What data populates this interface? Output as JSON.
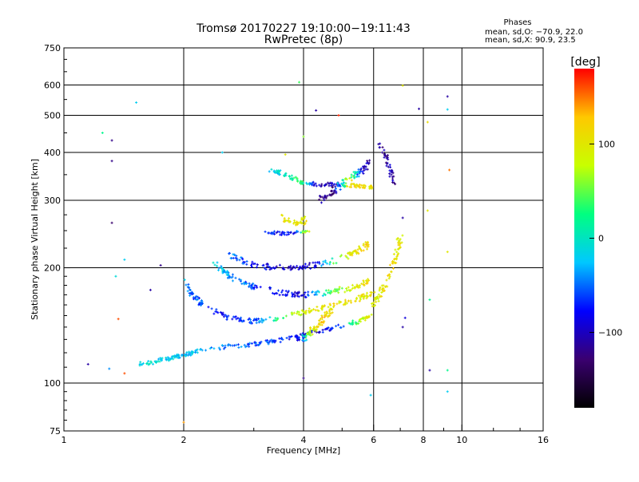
{
  "chart_data": {
    "type": "scatter",
    "title": "Tromsø 20170227 19:10:00−19:11:43",
    "subtitle": "RwPretec (8p)",
    "xlabel": "Frequency [MHz]",
    "ylabel": "Stationary phase Virtual Height [km]",
    "x_scale": "log",
    "y_scale": "log",
    "xlim": [
      1,
      16
    ],
    "ylim": [
      75,
      750
    ],
    "grid": true,
    "x_ticks": [
      1,
      2,
      4,
      6,
      8,
      10,
      16
    ],
    "x_tick_labels": [
      "1",
      "2",
      "4",
      "6",
      "8",
      "10",
      "16"
    ],
    "y_ticks": [
      75,
      100,
      200,
      300,
      400,
      500,
      600,
      750
    ],
    "y_tick_labels": [
      "75",
      "100",
      "200",
      "300",
      "400",
      "500",
      "600",
      "750"
    ],
    "phase_stats": {
      "heading": "Phases",
      "o_line": "mean, sd,O: −70.9, 22.0",
      "x_line": "mean, sd,X:  90.9, 23.5"
    },
    "colorbar": {
      "label": "[deg]",
      "range": [
        -180,
        180
      ],
      "ticks": [
        100,
        0,
        -100
      ],
      "tick_labels": [
        "100",
        "0",
        "−100"
      ],
      "colors": [
        "#000000",
        "#3a0070",
        "#0000ff",
        "#00c8ff",
        "#00ff80",
        "#c8ff00",
        "#ffc800",
        "#ff0000"
      ]
    },
    "trace_anchors": [
      {
        "x": [
          1.55,
          1.7,
          1.85,
          2.0,
          2.2,
          2.5,
          2.9,
          3.3,
          3.8,
          4.3,
          4.9,
          5.5,
          5.9
        ],
        "y": [
          112,
          114,
          116,
          118,
          122,
          124,
          126,
          128,
          132,
          136,
          140,
          145,
          150
        ],
        "phase": [
          -10,
          -15,
          -20,
          -25,
          -30,
          -40,
          -50,
          -60,
          -80,
          -90,
          -70,
          60,
          110
        ],
        "count": 240,
        "spread": 0.012
      },
      {
        "x": [
          2.0,
          2.1,
          2.3,
          2.6,
          3.0,
          3.5,
          4.1,
          4.8,
          5.5,
          6.0
        ],
        "y": [
          185,
          170,
          156,
          148,
          145,
          148,
          154,
          160,
          166,
          172
        ],
        "phase": [
          -30,
          -50,
          -70,
          -70,
          -60,
          40,
          100,
          110,
          100,
          100
        ],
        "count": 200,
        "spread": 0.014
      },
      {
        "x": [
          2.4,
          2.6,
          3.0,
          3.5,
          4.0,
          4.6,
          5.3,
          5.9
        ],
        "y": [
          205,
          190,
          178,
          172,
          170,
          172,
          178,
          185
        ],
        "phase": [
          -20,
          -40,
          -60,
          -80,
          -90,
          30,
          100,
          110
        ],
        "count": 170,
        "spread": 0.016
      },
      {
        "x": [
          2.6,
          2.9,
          3.3,
          3.8,
          4.3,
          4.9,
          5.4,
          5.9
        ],
        "y": [
          215,
          205,
          200,
          200,
          203,
          210,
          220,
          232
        ],
        "phase": [
          -40,
          -70,
          -90,
          -100,
          -90,
          60,
          110,
          120
        ],
        "count": 150,
        "spread": 0.018
      },
      {
        "x": [
          3.3,
          3.6,
          3.9,
          4.3,
          4.8,
          5.2,
          5.6,
          6.0
        ],
        "y": [
          360,
          350,
          335,
          330,
          330,
          328,
          326,
          324
        ],
        "phase": [
          -20,
          -10,
          50,
          -100,
          -110,
          120,
          110,
          100
        ],
        "count": 140,
        "spread": 0.012
      },
      {
        "x": [
          3.2,
          3.5,
          3.8,
          4.1
        ],
        "y": [
          248,
          246,
          246,
          250
        ],
        "phase": [
          -60,
          -80,
          -90,
          100
        ],
        "count": 45,
        "spread": 0.01
      },
      {
        "x": [
          4.4,
          4.8,
          5.2,
          5.6,
          5.9
        ],
        "y": [
          300,
          320,
          340,
          360,
          380
        ],
        "phase": [
          -110,
          -120,
          100,
          -100,
          -110
        ],
        "count": 90,
        "spread": 0.02
      },
      {
        "x": [
          6.0,
          6.2,
          6.5,
          6.8,
          7.0
        ],
        "y": [
          160,
          170,
          185,
          210,
          240
        ],
        "phase": [
          90,
          100,
          110,
          110,
          100
        ],
        "count": 80,
        "spread": 0.02
      },
      {
        "x": [
          6.2,
          6.4,
          6.6,
          6.8
        ],
        "y": [
          420,
          390,
          360,
          330
        ],
        "phase": [
          -110,
          -120,
          -100,
          -110
        ],
        "count": 40,
        "spread": 0.02
      },
      {
        "x": [
          3.9,
          4.1,
          4.3,
          4.5,
          4.7
        ],
        "y": [
          128,
          134,
          140,
          148,
          156
        ],
        "phase": [
          -100,
          60,
          110,
          120,
          100
        ],
        "count": 80,
        "spread": 0.015
      },
      {
        "x": [
          3.5,
          3.7,
          3.9,
          4.1
        ],
        "y": [
          270,
          265,
          262,
          268
        ],
        "phase": [
          100,
          110,
          105,
          100
        ],
        "count": 40,
        "spread": 0.02
      }
    ],
    "isolated_points": [
      {
        "x": 1.52,
        "y": 540,
        "phase": -20
      },
      {
        "x": 1.32,
        "y": 430,
        "phase": -120
      },
      {
        "x": 1.32,
        "y": 380,
        "phase": -120
      },
      {
        "x": 1.32,
        "y": 262,
        "phase": -130
      },
      {
        "x": 1.25,
        "y": 450,
        "phase": 20
      },
      {
        "x": 1.42,
        "y": 210,
        "phase": -20
      },
      {
        "x": 1.35,
        "y": 190,
        "phase": -10
      },
      {
        "x": 1.15,
        "y": 112,
        "phase": -110
      },
      {
        "x": 1.3,
        "y": 109,
        "phase": -40
      },
      {
        "x": 1.42,
        "y": 106,
        "phase": 160
      },
      {
        "x": 1.37,
        "y": 147,
        "phase": 160
      },
      {
        "x": 1.75,
        "y": 203,
        "phase": -120
      },
      {
        "x": 1.65,
        "y": 175,
        "phase": -110
      },
      {
        "x": 2.0,
        "y": 79,
        "phase": 140
      },
      {
        "x": 3.9,
        "y": 610,
        "phase": 40
      },
      {
        "x": 4.3,
        "y": 515,
        "phase": -110
      },
      {
        "x": 4.9,
        "y": 500,
        "phase": 170
      },
      {
        "x": 4.0,
        "y": 103,
        "phase": -120
      },
      {
        "x": 5.9,
        "y": 93,
        "phase": -20
      },
      {
        "x": 7.1,
        "y": 598,
        "phase": 100
      },
      {
        "x": 7.8,
        "y": 520,
        "phase": -110
      },
      {
        "x": 8.2,
        "y": 480,
        "phase": 110
      },
      {
        "x": 9.2,
        "y": 560,
        "phase": -110
      },
      {
        "x": 9.2,
        "y": 518,
        "phase": -20
      },
      {
        "x": 9.3,
        "y": 360,
        "phase": 150
      },
      {
        "x": 8.2,
        "y": 282,
        "phase": 100
      },
      {
        "x": 9.2,
        "y": 220,
        "phase": 100
      },
      {
        "x": 8.3,
        "y": 165,
        "phase": 20
      },
      {
        "x": 8.3,
        "y": 108,
        "phase": -110
      },
      {
        "x": 9.2,
        "y": 108,
        "phase": 20
      },
      {
        "x": 9.2,
        "y": 95,
        "phase": -20
      },
      {
        "x": 2.5,
        "y": 400,
        "phase": -20
      },
      {
        "x": 3.6,
        "y": 395,
        "phase": 100
      },
      {
        "x": 4.0,
        "y": 440,
        "phase": 60
      },
      {
        "x": 7.1,
        "y": 270,
        "phase": -110
      },
      {
        "x": 7.2,
        "y": 148,
        "phase": -90
      },
      {
        "x": 7.1,
        "y": 140,
        "phase": -110
      }
    ]
  }
}
